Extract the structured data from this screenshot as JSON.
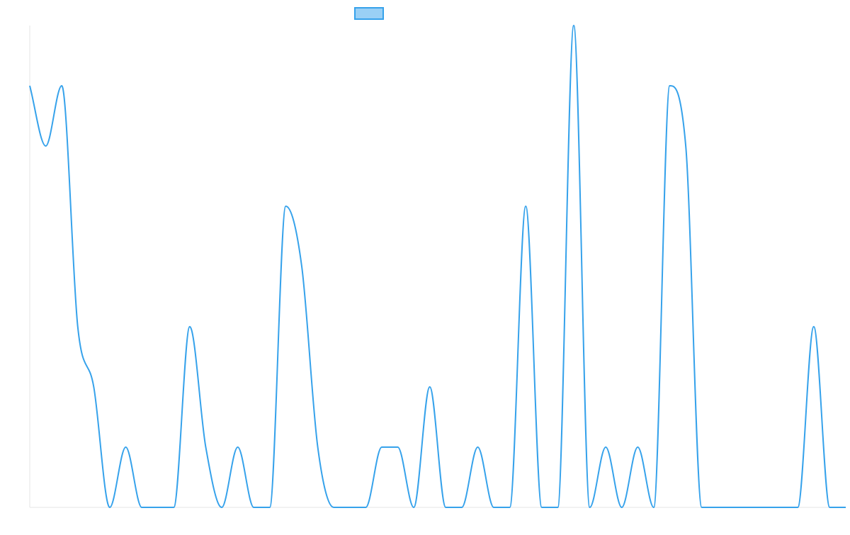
{
  "chart_data": {
    "type": "line",
    "title": "",
    "xlabel": "",
    "ylabel": "",
    "grid": false,
    "legend": "top-center",
    "x": [
      0,
      1,
      2,
      3,
      4,
      5,
      6,
      7,
      8,
      9,
      10,
      11,
      12,
      13,
      14,
      15,
      16,
      17,
      18,
      19,
      20,
      21,
      22,
      23,
      24,
      25,
      26,
      27,
      28,
      29,
      30,
      31,
      32,
      33,
      34,
      35,
      36,
      37,
      38,
      39,
      40,
      41,
      42,
      43,
      44,
      45,
      46,
      47,
      48,
      49,
      50,
      51
    ],
    "ylim": [
      0,
      8
    ],
    "series": [
      {
        "name": "",
        "color": "#36A2EB",
        "fill": "rgba(54, 162, 235, 0.5)",
        "values": [
          7,
          6,
          7,
          3,
          2,
          0,
          1,
          0,
          0,
          0,
          3,
          1,
          0,
          1,
          0,
          0,
          5,
          4,
          1,
          0,
          0,
          0,
          1,
          1,
          0,
          2,
          0,
          0,
          1,
          0,
          0,
          5,
          0,
          0,
          8,
          0,
          1,
          0,
          1,
          0,
          7,
          6,
          0,
          0,
          0,
          0,
          0,
          0,
          0,
          3,
          0,
          0
        ]
      }
    ]
  }
}
